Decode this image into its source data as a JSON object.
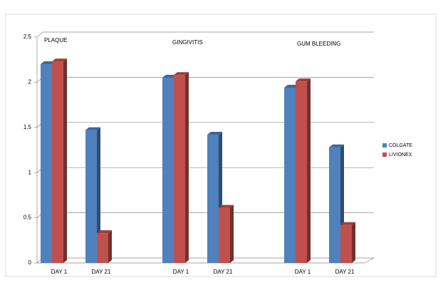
{
  "chart_data": {
    "type": "bar",
    "annotations": [
      "PLAQUE",
      "GINGIVITIS",
      "GUM BLEEDING"
    ],
    "categories": [
      "DAY 1",
      "DAY 21",
      null,
      "DAY 1",
      "DAY 21",
      null,
      "DAY 1",
      "DAY 21"
    ],
    "series": [
      {
        "name": "COLGATE",
        "color": "#4f81bd",
        "values": [
          2.2,
          1.47,
          null,
          2.05,
          1.42,
          null,
          1.94,
          1.28
        ]
      },
      {
        "name": "LIVIONEX",
        "color": "#c0504d",
        "values": [
          2.23,
          0.33,
          null,
          2.08,
          0.61,
          null,
          2.01,
          0.42
        ]
      }
    ],
    "ylim": [
      0,
      2.5
    ],
    "yticks": [
      0,
      0.5,
      1,
      1.5,
      2,
      2.5
    ],
    "grid": true,
    "legend": "right"
  }
}
